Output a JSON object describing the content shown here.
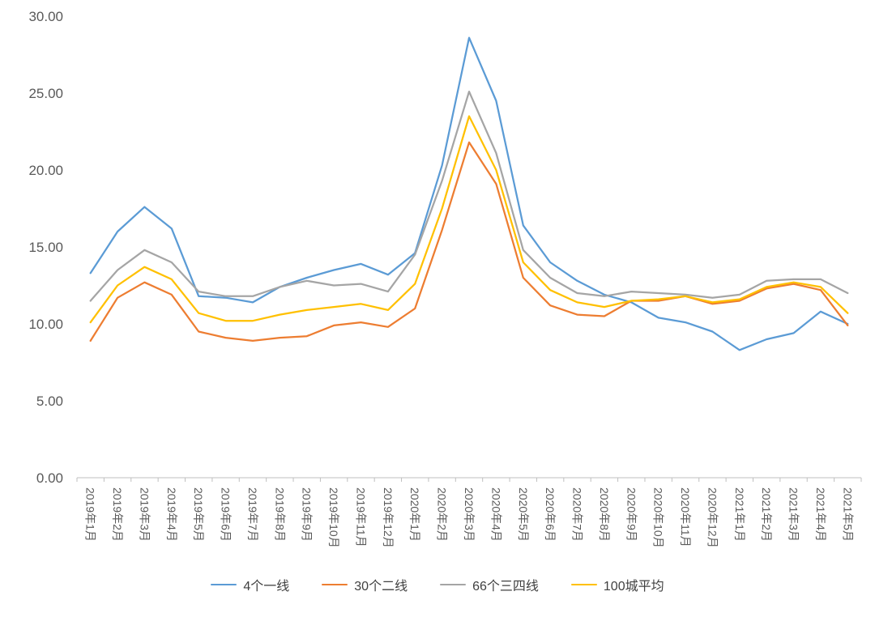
{
  "chart_data": {
    "type": "line",
    "title": "",
    "xlabel": "",
    "ylabel": "",
    "grid": false,
    "legend_position": "bottom",
    "background_color": "#FFFFFF",
    "axis_color": "#BFBFBF",
    "label_color": "#595959",
    "ylim": [
      0,
      30
    ],
    "y_ticks": [
      {
        "value": 0,
        "label": "0.00"
      },
      {
        "value": 5,
        "label": "5.00"
      },
      {
        "value": 10,
        "label": "10.00"
      },
      {
        "value": 15,
        "label": "15.00"
      },
      {
        "value": 20,
        "label": "20.00"
      },
      {
        "value": 25,
        "label": "25.00"
      },
      {
        "value": 30,
        "label": "30.00"
      }
    ],
    "categories": [
      "2019年1月",
      "2019年2月",
      "2019年3月",
      "2019年4月",
      "2019年5月",
      "2019年6月",
      "2019年7月",
      "2019年8月",
      "2019年9月",
      "2019年10月",
      "2019年11月",
      "2019年12月",
      "2020年1月",
      "2020年2月",
      "2020年3月",
      "2020年4月",
      "2020年5月",
      "2020年6月",
      "2020年7月",
      "2020年8月",
      "2020年9月",
      "2020年10月",
      "2020年11月",
      "2020年12月",
      "2021年1月",
      "2021年2月",
      "2021年3月",
      "2021年4月",
      "2021年5月"
    ],
    "series": [
      {
        "name": "4个一线",
        "color": "#5B9BD5",
        "values": [
          13.3,
          16.0,
          17.6,
          16.2,
          11.8,
          11.7,
          11.4,
          12.4,
          13.0,
          13.5,
          13.9,
          13.2,
          14.6,
          20.3,
          28.6,
          24.5,
          16.4,
          14.0,
          12.8,
          11.9,
          11.4,
          10.4,
          10.1,
          9.5,
          8.3,
          9.0,
          9.4,
          10.8,
          10.0
        ]
      },
      {
        "name": "30个二线",
        "color": "#ED7D31",
        "values": [
          8.9,
          11.7,
          12.7,
          11.9,
          9.5,
          9.1,
          8.9,
          9.1,
          9.2,
          9.9,
          10.1,
          9.8,
          11.0,
          16.1,
          21.8,
          19.1,
          13.0,
          11.2,
          10.6,
          10.5,
          11.5,
          11.5,
          11.8,
          11.3,
          11.5,
          12.3,
          12.6,
          12.2,
          9.9
        ]
      },
      {
        "name": "66个三四线",
        "color": "#A5A5A5",
        "values": [
          11.5,
          13.5,
          14.8,
          14.0,
          12.1,
          11.8,
          11.8,
          12.4,
          12.8,
          12.5,
          12.6,
          12.1,
          14.5,
          19.3,
          25.1,
          21.1,
          14.8,
          13.0,
          12.0,
          11.8,
          12.1,
          12.0,
          11.9,
          11.7,
          11.9,
          12.8,
          12.9,
          12.9,
          12.0
        ]
      },
      {
        "name": "100城平均",
        "color": "#FFC000",
        "values": [
          10.1,
          12.5,
          13.7,
          12.9,
          10.7,
          10.2,
          10.2,
          10.6,
          10.9,
          11.1,
          11.3,
          10.9,
          12.6,
          17.5,
          23.5,
          20.0,
          14.0,
          12.2,
          11.4,
          11.1,
          11.5,
          11.6,
          11.8,
          11.4,
          11.6,
          12.4,
          12.7,
          12.4,
          10.7
        ]
      }
    ]
  }
}
